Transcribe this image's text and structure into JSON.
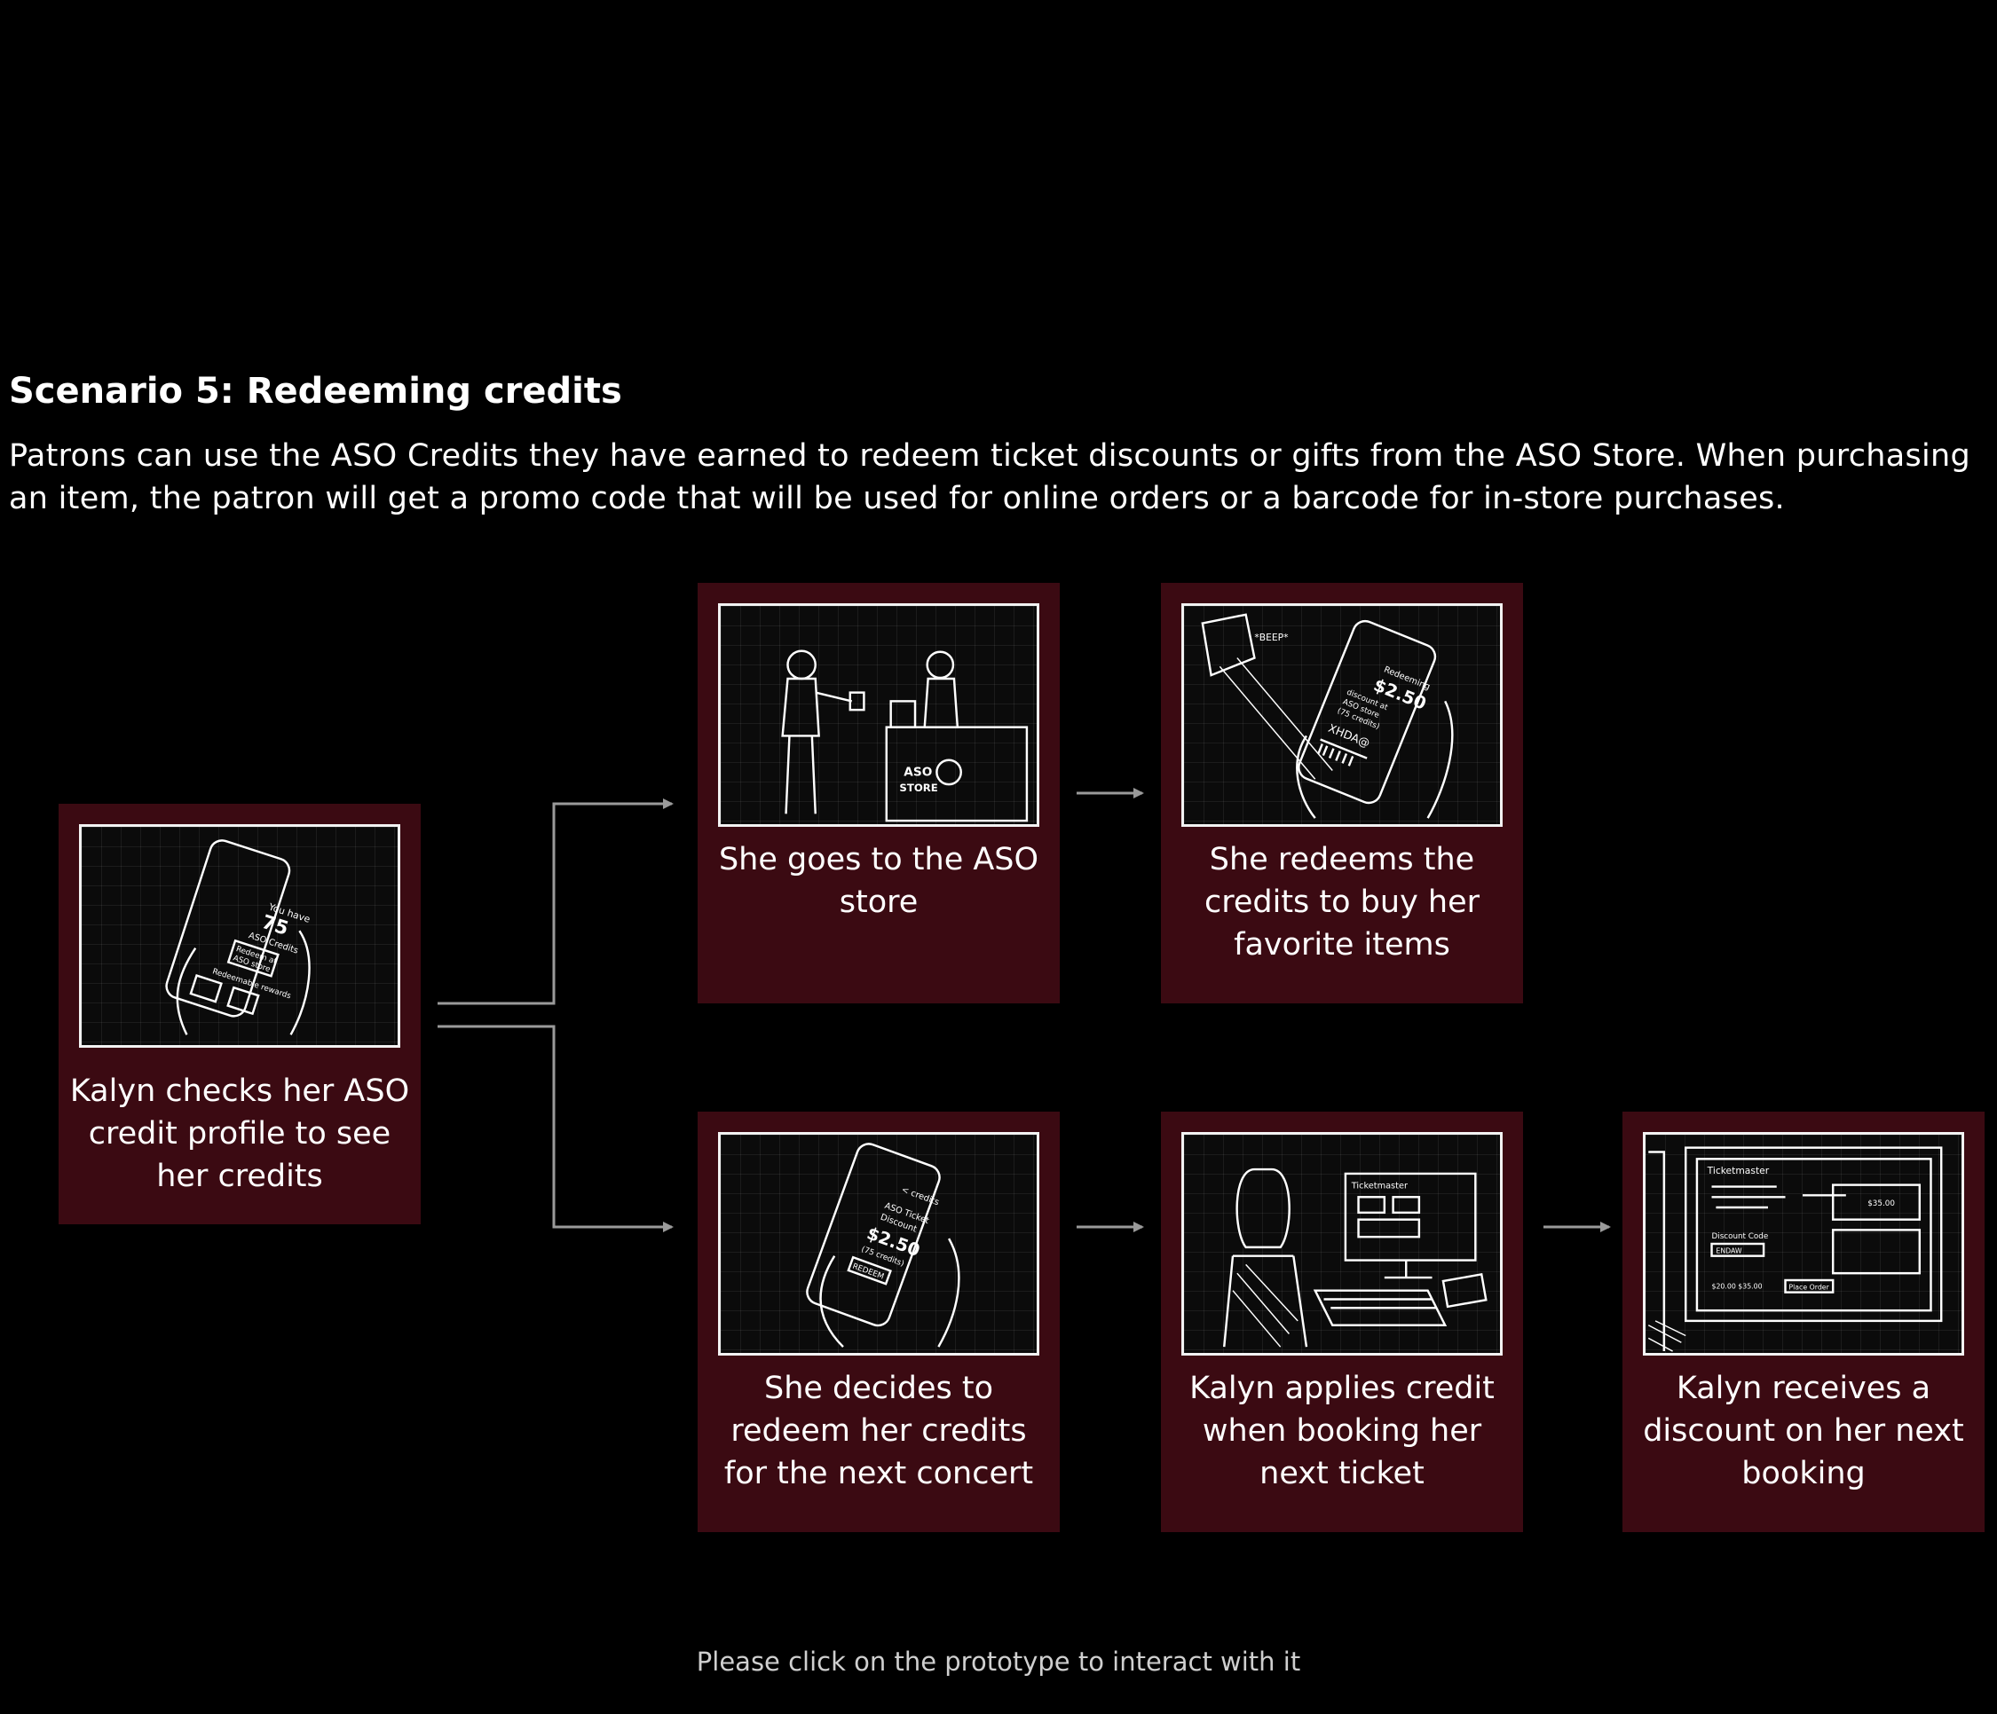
{
  "header": {
    "title": "Scenario 5: Redeeming credits",
    "description": "Patrons can use the ASO Credits they have earned to redeem ticket discounts or gifts from the ASO Store. When purchasing an item, the patron will get a promo code that will be used for online orders or a barcode for in-store purchases."
  },
  "steps": [
    {
      "caption": "Kalyn checks her ASO credit profile to see her credits",
      "sketch_text": [
        "You have",
        "75",
        "ASO Credits",
        "Redeem at",
        "ASO store",
        "Redeemable rewards"
      ]
    },
    {
      "caption": "She goes to the ASO store",
      "sketch_text": [
        "ASO",
        "STORE"
      ]
    },
    {
      "caption": "She redeems the credits to buy her favorite items",
      "sketch_text": [
        "*BEEP*",
        "Redeeming",
        "$2.50",
        "discount at",
        "ASO store",
        "(75 credits)",
        "XHDA@"
      ]
    },
    {
      "caption": "She decides to redeem her credits for the next concert",
      "sketch_text": [
        "< credits",
        "ASO Ticket",
        "Discount",
        "$2.50",
        "(75 credits)",
        "REDEEM"
      ]
    },
    {
      "caption": "Kalyn applies credit when booking her next ticket",
      "sketch_text": [
        "Ticketmaster"
      ]
    },
    {
      "caption": "Kalyn receives a discount on her next booking",
      "sketch_text": [
        "Ticketmaster",
        "$35.00",
        "Discount Code",
        "ENDAW",
        "$20.00 $35.00",
        "Place Order"
      ]
    }
  ],
  "footer": {
    "text": "Please click on the prototype to interact with it"
  },
  "colors": {
    "background": "#000000",
    "card": "#3b0a12",
    "connector": "#9a9a9a"
  }
}
